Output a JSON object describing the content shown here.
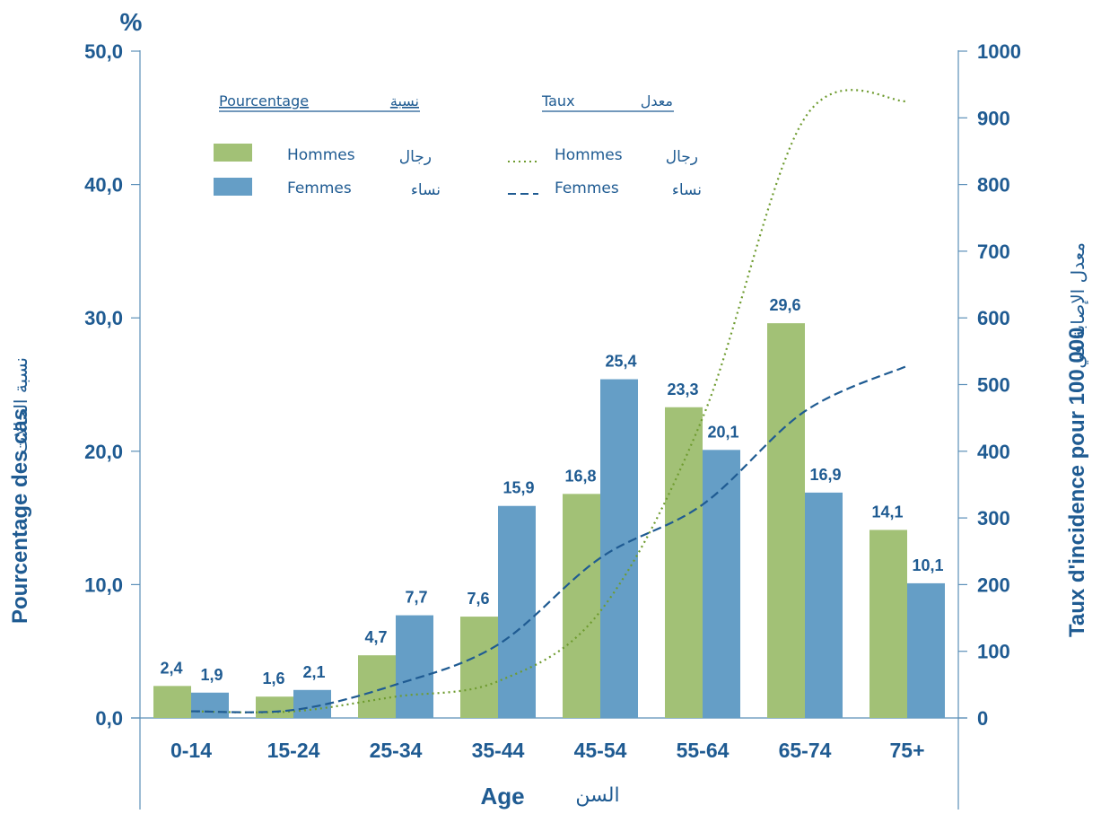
{
  "chart_data": {
    "type": "bar",
    "unit_label": "%",
    "categories": [
      "0-14",
      "15-24",
      "25-34",
      "35-44",
      "45-54",
      "55-64",
      "65-74",
      "75+"
    ],
    "xlabel_fr": "Age",
    "xlabel_ar": "السن",
    "ylabel_left_fr": "Pourcentage des cas",
    "ylabel_left_ar": "نسبة الحالات",
    "ylabel_right_fr": "Taux d'incidence pour 100 000",
    "ylabel_right_ar": "معدل الإصابة في",
    "ylim_left": [
      0,
      50
    ],
    "ylim_right": [
      0,
      1000
    ],
    "left_ticks": [
      "0,0",
      "10,0",
      "20,0",
      "30,0",
      "40,0",
      "50,0"
    ],
    "right_ticks": [
      "0",
      "100",
      "200",
      "300",
      "400",
      "500",
      "600",
      "700",
      "800",
      "900",
      "1000"
    ],
    "grid": false,
    "legend": {
      "placement": "top-left",
      "bars_title_fr": "Pourcentage",
      "bars_title_ar": "نسبة",
      "lines_title_fr": "Taux",
      "lines_title_ar": "معدل",
      "men_fr": "Hommes",
      "men_ar": "رجال",
      "women_fr": "Femmes",
      "women_ar": "نساء"
    },
    "series": [
      {
        "name": "Hommes",
        "type": "bar",
        "axis": "left",
        "color": "#a2c176",
        "values": [
          2.4,
          1.6,
          4.7,
          7.6,
          16.8,
          23.3,
          29.6,
          14.1
        ],
        "labels": [
          "2,4",
          "1,6",
          "4,7",
          "7,6",
          "16,8",
          "23,3",
          "29,6",
          "14,1"
        ]
      },
      {
        "name": "Femmes",
        "type": "bar",
        "axis": "left",
        "color": "#659ec6",
        "values": [
          1.9,
          2.1,
          7.7,
          15.9,
          25.4,
          20.1,
          16.9,
          10.1
        ],
        "labels": [
          "1,9",
          "2,1",
          "7,7",
          "15,9",
          "25,4",
          "20,1",
          "16,9",
          "10,1"
        ]
      },
      {
        "name": "Hommes",
        "type": "line",
        "style": "dotted",
        "axis": "right",
        "color": "#6e9b2f",
        "values": [
          10,
          10,
          32,
          55,
          160,
          450,
          900,
          925
        ]
      },
      {
        "name": "Femmes",
        "type": "line",
        "style": "dashed",
        "axis": "right",
        "color": "#1f5b92",
        "values": [
          10,
          12,
          50,
          110,
          240,
          320,
          460,
          528
        ]
      }
    ]
  }
}
